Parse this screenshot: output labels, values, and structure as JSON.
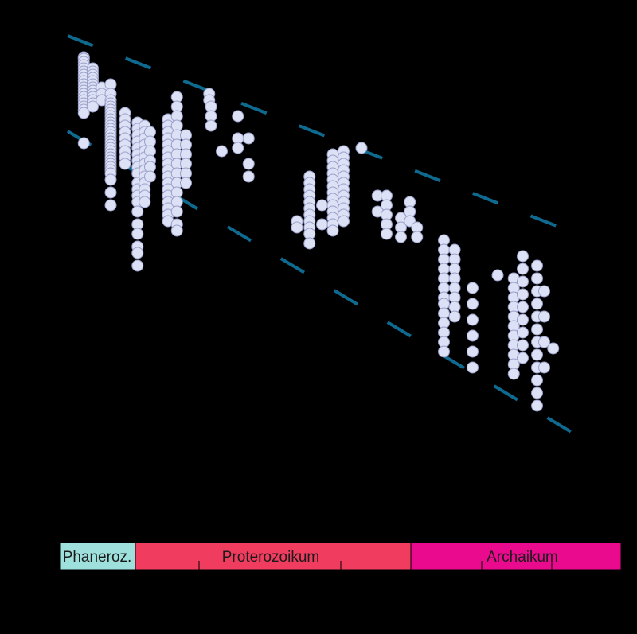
{
  "chart_data": {
    "type": "scatter",
    "title": "",
    "xlabel": "",
    "ylabel": "",
    "marker_color": "#dde1f6",
    "marker_edge": "#9aa0c8",
    "band_line_color": "#0f6a8f",
    "eons": [
      {
        "name": "Phaneroz.",
        "color": "#9ee0dc"
      },
      {
        "name": "Proterozoikum",
        "color": "#f03c5f"
      },
      {
        "name": "Archaikum",
        "color": "#ea0a8e"
      }
    ],
    "columns": [
      {
        "x": 0.45,
        "ys": [
          0.1,
          0.2,
          0.4,
          0.6,
          0.8,
          1.0,
          1.2,
          1.4,
          1.6,
          1.8,
          2.0,
          2.2,
          2.4,
          2.6,
          2.8,
          3.0,
          3.2,
          3.4,
          3.6
        ],
        "extra": [
          5.5
        ]
      },
      {
        "x": 0.7,
        "ys": [
          0.8,
          1.0,
          1.2,
          1.4,
          1.6,
          1.8,
          2.0,
          2.2,
          2.4,
          2.6,
          2.8,
          3.0,
          3.2
        ]
      },
      {
        "x": 0.95,
        "ys": [
          2.0,
          2.4,
          2.8
        ]
      },
      {
        "x": 1.2,
        "ys": [
          1.8,
          2.4,
          2.8,
          3.0,
          3.2,
          3.4,
          3.6,
          3.8,
          4.0,
          4.2,
          4.4,
          4.6,
          4.8,
          5.0,
          5.2,
          5.4,
          5.6,
          5.8,
          6.0,
          6.2,
          6.4,
          6.6,
          6.8,
          7.0,
          7.2,
          7.4,
          7.8
        ],
        "extra": [
          8.6,
          9.4
        ]
      },
      {
        "x": 1.6,
        "ys": [
          3.6,
          4.0,
          4.4,
          4.8,
          5.2,
          5.6,
          6.0,
          6.4,
          6.8
        ]
      },
      {
        "x": 1.95,
        "ys": [
          4.2,
          4.6,
          5.0,
          5.4,
          5.8,
          6.2,
          6.6,
          7.0,
          7.4,
          8.0,
          8.4,
          8.8,
          9.2,
          9.8,
          10.6,
          11.2,
          12.0,
          12.4,
          13.2
        ]
      },
      {
        "x": 2.15,
        "ys": [
          4.4,
          4.8,
          5.2,
          5.6,
          6.0,
          6.4,
          6.8,
          7.2,
          7.6,
          8.0,
          8.4,
          8.8,
          9.2
        ]
      },
      {
        "x": 2.3,
        "ys": [
          4.8,
          5.4,
          6.0,
          6.6,
          7.0,
          7.6
        ]
      },
      {
        "x": 2.8,
        "ys": [
          4.0,
          4.4,
          4.8,
          5.2,
          5.6,
          6.0,
          6.4,
          6.8,
          7.2,
          7.6,
          8.0,
          8.4,
          8.8,
          9.2,
          9.6,
          10.0,
          10.4
        ]
      },
      {
        "x": 3.05,
        "ys": [
          2.6,
          3.2,
          3.8,
          4.4,
          5.0,
          5.6,
          6.2,
          6.8,
          7.4,
          8.0,
          8.6,
          9.2,
          9.8,
          10.6
        ],
        "extra": [
          11.0
        ]
      },
      {
        "x": 3.3,
        "ys": [
          5.0,
          5.6,
          6.2,
          6.8,
          7.4,
          8.0
        ]
      },
      {
        "x": 3.95,
        "ys": [
          2.4,
          2.8
        ]
      },
      {
        "x": 4.0,
        "ys": [
          3.2,
          3.8,
          4.4
        ]
      },
      {
        "x": 4.3,
        "ys": [
          6.0
        ]
      },
      {
        "x": 4.75,
        "ys": [
          3.8,
          5.2,
          5.8
        ]
      },
      {
        "x": 5.05,
        "ys": [
          5.2,
          6.8,
          7.6
        ]
      },
      {
        "x": 6.4,
        "ys": [
          10.4,
          10.8
        ]
      },
      {
        "x": 6.75,
        "ys": [
          7.6,
          8.0,
          8.4,
          8.8,
          9.2,
          9.6,
          10.0,
          10.4,
          10.8,
          11.2,
          11.8
        ]
      },
      {
        "x": 7.1,
        "ys": [
          9.4,
          10.6
        ]
      },
      {
        "x": 7.4,
        "ys": [
          6.2,
          6.6,
          7.0,
          7.4,
          7.8,
          8.2,
          8.6,
          9.0,
          9.4,
          9.8,
          10.2,
          10.6,
          11.0
        ]
      },
      {
        "x": 7.7,
        "ys": [
          6.0,
          6.4,
          6.8,
          7.2,
          7.6,
          8.0,
          8.4,
          8.8,
          9.2,
          9.6,
          10.0,
          10.4
        ]
      },
      {
        "x": 8.2,
        "ys": [
          5.8
        ]
      },
      {
        "x": 8.65,
        "ys": [
          8.8,
          9.8
        ]
      },
      {
        "x": 8.9,
        "ys": [
          8.8,
          9.4,
          10.0,
          10.6,
          11.2
        ]
      },
      {
        "x": 9.3,
        "ys": [
          10.2,
          10.8,
          11.4
        ]
      },
      {
        "x": 9.55,
        "ys": [
          9.2,
          9.8,
          10.4
        ]
      },
      {
        "x": 9.75,
        "ys": [
          10.8,
          11.4
        ]
      },
      {
        "x": 10.5,
        "ys": [
          11.6,
          12.2,
          12.8,
          13.4,
          14.0,
          14.6,
          15.2,
          15.6,
          16.2,
          16.8,
          17.4,
          18.0,
          18.6
        ]
      },
      {
        "x": 10.8,
        "ys": [
          12.2,
          12.8,
          13.4,
          14.0,
          14.6,
          15.2,
          15.8,
          16.4
        ]
      },
      {
        "x": 11.3,
        "ys": [
          14.6,
          15.6,
          16.6,
          17.6,
          18.6,
          19.6
        ]
      },
      {
        "x": 12.0,
        "ys": [
          13.8
        ]
      },
      {
        "x": 12.45,
        "ys": [
          14.0,
          14.6,
          15.2,
          15.8,
          16.4,
          17.0,
          17.6,
          18.2,
          18.8,
          19.4,
          20.0
        ]
      },
      {
        "x": 12.7,
        "ys": [
          12.6,
          13.4,
          14.2,
          15.0,
          15.8,
          16.6,
          17.4,
          18.2,
          19.0
        ]
      },
      {
        "x": 13.1,
        "ys": [
          13.2,
          14.0,
          14.8,
          15.6,
          16.4,
          17.2,
          18.0,
          18.8,
          19.6,
          20.4,
          21.2,
          22.0
        ]
      },
      {
        "x": 13.3,
        "ys": [
          14.8,
          16.4,
          18.0,
          19.6
        ]
      },
      {
        "x": 13.55,
        "ys": [
          18.4
        ]
      }
    ],
    "upper_line": {
      "x": [
        0,
        14.5
      ],
      "y": [
        0,
        12.7
      ]
    },
    "lower_line": {
      "x": [
        0,
        14.5
      ],
      "y": [
        6.0,
        25.5
      ]
    }
  }
}
